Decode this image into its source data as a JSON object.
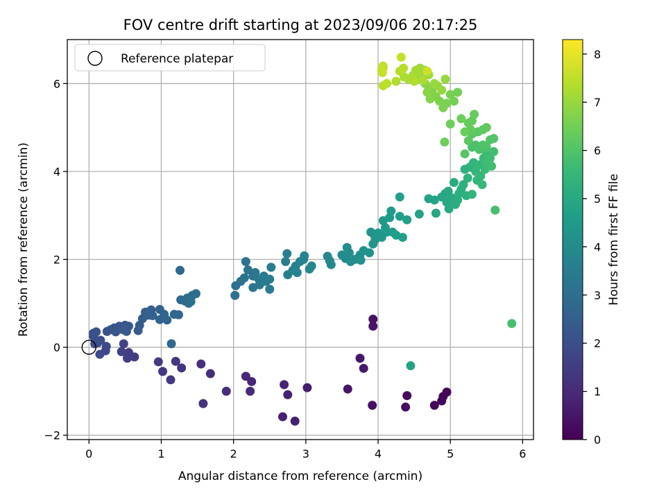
{
  "chart_data": {
    "type": "scatter",
    "title": "FOV centre drift starting at 2023/09/06 20:17:25",
    "xlabel": "Angular distance from reference (arcmin)",
    "ylabel": "Rotation from reference (arcmin)",
    "xlim": [
      -0.3,
      6.15
    ],
    "ylim": [
      -2.1,
      7.0
    ],
    "xticks": [
      0,
      1,
      2,
      3,
      4,
      5,
      6
    ],
    "yticks": [
      -2,
      0,
      2,
      4,
      6
    ],
    "grid": true,
    "legend": {
      "placement": "top-left",
      "entries": [
        "Reference platepar"
      ]
    },
    "reference_point": {
      "x": 0,
      "y": 0
    },
    "colorbar": {
      "label": "Hours from first FF file",
      "colormap": "viridis",
      "range": [
        0,
        8.3
      ],
      "ticks": [
        0,
        1,
        2,
        3,
        4,
        5,
        6,
        7,
        8
      ]
    },
    "points": [
      {
        "x": 4.95,
        "y": -1.02,
        "c": 0.05
      },
      {
        "x": 4.9,
        "y": -1.12,
        "c": 0.1
      },
      {
        "x": 4.88,
        "y": -1.22,
        "c": 0.15
      },
      {
        "x": 4.78,
        "y": -1.32,
        "c": 0.2
      },
      {
        "x": 4.4,
        "y": -1.1,
        "c": 0.25
      },
      {
        "x": 4.38,
        "y": -1.36,
        "c": 0.3
      },
      {
        "x": 3.92,
        "y": -1.32,
        "c": 0.35
      },
      {
        "x": 3.93,
        "y": 0.64,
        "c": 0.4
      },
      {
        "x": 3.93,
        "y": 0.48,
        "c": 0.45
      },
      {
        "x": 3.58,
        "y": -0.95,
        "c": 0.5
      },
      {
        "x": 3.75,
        "y": -0.25,
        "c": 0.55
      },
      {
        "x": 3.8,
        "y": -0.48,
        "c": 0.6
      },
      {
        "x": 3.02,
        "y": -0.92,
        "c": 0.65
      },
      {
        "x": 2.85,
        "y": -1.68,
        "c": 0.7
      },
      {
        "x": 2.68,
        "y": -1.58,
        "c": 0.75
      },
      {
        "x": 2.75,
        "y": -1.08,
        "c": 0.8
      },
      {
        "x": 2.7,
        "y": -0.85,
        "c": 0.85
      },
      {
        "x": 2.25,
        "y": -0.78,
        "c": 0.9
      },
      {
        "x": 2.17,
        "y": -0.66,
        "c": 0.95
      },
      {
        "x": 2.23,
        "y": -1.0,
        "c": 1.0
      },
      {
        "x": 1.9,
        "y": -1.0,
        "c": 1.05
      },
      {
        "x": 1.68,
        "y": -0.6,
        "c": 1.1
      },
      {
        "x": 1.55,
        "y": -0.38,
        "c": 1.15
      },
      {
        "x": 1.58,
        "y": -1.28,
        "c": 1.2
      },
      {
        "x": 1.28,
        "y": -0.47,
        "c": 1.25
      },
      {
        "x": 1.2,
        "y": -0.32,
        "c": 1.3
      },
      {
        "x": 1.13,
        "y": -0.74,
        "c": 1.35
      },
      {
        "x": 1.02,
        "y": -0.55,
        "c": 1.4
      },
      {
        "x": 0.96,
        "y": -0.33,
        "c": 1.45
      },
      {
        "x": 0.63,
        "y": -0.22,
        "c": 1.5
      },
      {
        "x": 0.55,
        "y": -0.12,
        "c": 1.55
      },
      {
        "x": 0.53,
        "y": -0.25,
        "c": 1.6
      },
      {
        "x": 0.45,
        "y": -0.1,
        "c": 1.65
      },
      {
        "x": 0.48,
        "y": 0.08,
        "c": 1.7
      },
      {
        "x": 0.23,
        "y": -0.08,
        "c": 1.75
      },
      {
        "x": 0.24,
        "y": 0.02,
        "c": 1.8
      },
      {
        "x": 0.15,
        "y": -0.16,
        "c": 1.85
      },
      {
        "x": 0.12,
        "y": 0.1,
        "c": 1.9
      },
      {
        "x": 0.16,
        "y": 0.16,
        "c": 1.95
      },
      {
        "x": 0.08,
        "y": 0.08,
        "c": 2.0
      },
      {
        "x": 0.06,
        "y": 0.25,
        "c": 2.03
      },
      {
        "x": 0.06,
        "y": 0.32,
        "c": 2.06
      },
      {
        "x": 0.1,
        "y": 0.35,
        "c": 2.09
      },
      {
        "x": 0.25,
        "y": 0.36,
        "c": 2.12
      },
      {
        "x": 0.3,
        "y": 0.4,
        "c": 2.15
      },
      {
        "x": 0.35,
        "y": 0.44,
        "c": 2.18
      },
      {
        "x": 0.42,
        "y": 0.48,
        "c": 2.21
      },
      {
        "x": 0.5,
        "y": 0.5,
        "c": 2.24
      },
      {
        "x": 0.37,
        "y": 0.35,
        "c": 2.27
      },
      {
        "x": 0.47,
        "y": 0.4,
        "c": 2.3
      },
      {
        "x": 0.52,
        "y": 0.36,
        "c": 2.33
      },
      {
        "x": 0.55,
        "y": 0.48,
        "c": 2.36
      },
      {
        "x": 0.68,
        "y": 0.38,
        "c": 2.39
      },
      {
        "x": 0.7,
        "y": 0.5,
        "c": 2.42
      },
      {
        "x": 0.74,
        "y": 0.65,
        "c": 2.45
      },
      {
        "x": 0.78,
        "y": 0.8,
        "c": 2.48
      },
      {
        "x": 0.82,
        "y": 0.73,
        "c": 2.51
      },
      {
        "x": 0.86,
        "y": 0.85,
        "c": 2.54
      },
      {
        "x": 0.88,
        "y": 0.72,
        "c": 2.57
      },
      {
        "x": 0.98,
        "y": 0.63,
        "c": 2.6
      },
      {
        "x": 0.98,
        "y": 0.86,
        "c": 2.63
      },
      {
        "x": 1.04,
        "y": 0.75,
        "c": 2.66
      },
      {
        "x": 1.08,
        "y": 0.62,
        "c": 2.69
      },
      {
        "x": 1.18,
        "y": 0.75,
        "c": 2.72
      },
      {
        "x": 1.24,
        "y": 0.74,
        "c": 2.75
      },
      {
        "x": 1.14,
        "y": 0.08,
        "c": 2.78
      },
      {
        "x": 1.26,
        "y": 1.75,
        "c": 2.81
      },
      {
        "x": 1.27,
        "y": 1.08,
        "c": 2.84
      },
      {
        "x": 1.33,
        "y": 1.05,
        "c": 2.87
      },
      {
        "x": 1.36,
        "y": 1.12,
        "c": 2.9
      },
      {
        "x": 1.38,
        "y": 1.0,
        "c": 2.93
      },
      {
        "x": 1.43,
        "y": 1.18,
        "c": 2.96
      },
      {
        "x": 1.48,
        "y": 1.22,
        "c": 2.99
      },
      {
        "x": 1.41,
        "y": 1.04,
        "c": 3.02
      },
      {
        "x": 2.02,
        "y": 1.18,
        "c": 3.05
      },
      {
        "x": 2.03,
        "y": 1.4,
        "c": 3.08
      },
      {
        "x": 2.1,
        "y": 1.5,
        "c": 3.11
      },
      {
        "x": 2.15,
        "y": 1.58,
        "c": 3.14
      },
      {
        "x": 2.17,
        "y": 1.95,
        "c": 3.17
      },
      {
        "x": 2.2,
        "y": 1.76,
        "c": 3.2
      },
      {
        "x": 2.27,
        "y": 1.36,
        "c": 3.23
      },
      {
        "x": 2.27,
        "y": 1.62,
        "c": 3.26
      },
      {
        "x": 2.3,
        "y": 1.7,
        "c": 3.29
      },
      {
        "x": 2.36,
        "y": 1.42,
        "c": 3.32
      },
      {
        "x": 2.35,
        "y": 1.55,
        "c": 3.35
      },
      {
        "x": 2.42,
        "y": 1.62,
        "c": 3.38
      },
      {
        "x": 2.45,
        "y": 1.5,
        "c": 3.41
      },
      {
        "x": 2.5,
        "y": 1.55,
        "c": 3.44
      },
      {
        "x": 2.5,
        "y": 1.32,
        "c": 3.47
      },
      {
        "x": 2.52,
        "y": 1.82,
        "c": 3.5
      },
      {
        "x": 2.72,
        "y": 1.95,
        "c": 3.53
      },
      {
        "x": 2.74,
        "y": 2.13,
        "c": 3.56
      },
      {
        "x": 2.75,
        "y": 1.65,
        "c": 3.59
      },
      {
        "x": 2.82,
        "y": 1.75,
        "c": 3.62
      },
      {
        "x": 2.86,
        "y": 1.85,
        "c": 3.65
      },
      {
        "x": 2.88,
        "y": 1.7,
        "c": 3.68
      },
      {
        "x": 2.92,
        "y": 1.95,
        "c": 3.71
      },
      {
        "x": 2.97,
        "y": 2.0,
        "c": 3.74
      },
      {
        "x": 2.98,
        "y": 2.08,
        "c": 3.77
      },
      {
        "x": 3.05,
        "y": 1.78,
        "c": 3.8
      },
      {
        "x": 3.08,
        "y": 1.85,
        "c": 3.83
      },
      {
        "x": 3.3,
        "y": 2.07,
        "c": 3.86
      },
      {
        "x": 3.33,
        "y": 1.97,
        "c": 3.89
      },
      {
        "x": 3.35,
        "y": 1.88,
        "c": 3.92
      },
      {
        "x": 3.5,
        "y": 2.1,
        "c": 3.95
      },
      {
        "x": 3.55,
        "y": 2.02,
        "c": 3.98
      },
      {
        "x": 3.57,
        "y": 2.27,
        "c": 4.01
      },
      {
        "x": 3.6,
        "y": 2.15,
        "c": 4.04
      },
      {
        "x": 3.62,
        "y": 1.95,
        "c": 4.07
      },
      {
        "x": 3.68,
        "y": 2.0,
        "c": 4.1
      },
      {
        "x": 3.75,
        "y": 2.1,
        "c": 4.13
      },
      {
        "x": 3.76,
        "y": 1.98,
        "c": 4.16
      },
      {
        "x": 3.8,
        "y": 2.2,
        "c": 4.19
      },
      {
        "x": 3.88,
        "y": 2.15,
        "c": 4.22
      },
      {
        "x": 3.9,
        "y": 2.62,
        "c": 4.25
      },
      {
        "x": 3.93,
        "y": 2.35,
        "c": 4.28
      },
      {
        "x": 3.95,
        "y": 2.55,
        "c": 4.31
      },
      {
        "x": 3.96,
        "y": 2.45,
        "c": 4.34
      },
      {
        "x": 4.0,
        "y": 2.6,
        "c": 4.37
      },
      {
        "x": 4.05,
        "y": 2.5,
        "c": 4.4
      },
      {
        "x": 4.07,
        "y": 2.88,
        "c": 4.43
      },
      {
        "x": 4.1,
        "y": 2.72,
        "c": 4.46
      },
      {
        "x": 4.12,
        "y": 2.62,
        "c": 4.49
      },
      {
        "x": 4.16,
        "y": 2.95,
        "c": 4.52
      },
      {
        "x": 4.18,
        "y": 3.1,
        "c": 4.55
      },
      {
        "x": 4.2,
        "y": 2.62,
        "c": 4.58
      },
      {
        "x": 4.25,
        "y": 2.55,
        "c": 4.61
      },
      {
        "x": 4.3,
        "y": 2.98,
        "c": 4.64
      },
      {
        "x": 4.34,
        "y": 2.5,
        "c": 4.67
      },
      {
        "x": 4.3,
        "y": 3.42,
        "c": 4.7
      },
      {
        "x": 4.4,
        "y": 2.9,
        "c": 4.73
      },
      {
        "x": 4.57,
        "y": 3.03,
        "c": 4.76
      },
      {
        "x": 4.45,
        "y": -0.42,
        "c": 4.79
      },
      {
        "x": 4.7,
        "y": 3.38,
        "c": 4.82
      },
      {
        "x": 4.78,
        "y": 3.35,
        "c": 4.85
      },
      {
        "x": 4.8,
        "y": 3.05,
        "c": 4.88
      },
      {
        "x": 4.88,
        "y": 3.42,
        "c": 4.91
      },
      {
        "x": 4.93,
        "y": 3.5,
        "c": 4.94
      },
      {
        "x": 4.95,
        "y": 3.3,
        "c": 4.97
      },
      {
        "x": 4.97,
        "y": 3.55,
        "c": 5.0
      },
      {
        "x": 4.98,
        "y": 3.15,
        "c": 5.03
      },
      {
        "x": 5.02,
        "y": 3.4,
        "c": 5.06
      },
      {
        "x": 5.05,
        "y": 3.75,
        "c": 5.09
      },
      {
        "x": 5.07,
        "y": 3.25,
        "c": 5.12
      },
      {
        "x": 5.1,
        "y": 3.35,
        "c": 5.15
      },
      {
        "x": 5.12,
        "y": 3.5,
        "c": 5.18
      },
      {
        "x": 5.15,
        "y": 3.6,
        "c": 5.21
      },
      {
        "x": 5.18,
        "y": 3.7,
        "c": 5.24
      },
      {
        "x": 5.2,
        "y": 4.05,
        "c": 5.27
      },
      {
        "x": 5.22,
        "y": 3.45,
        "c": 5.3
      },
      {
        "x": 5.24,
        "y": 3.85,
        "c": 5.33
      },
      {
        "x": 5.27,
        "y": 4.1,
        "c": 5.36
      },
      {
        "x": 5.3,
        "y": 3.48,
        "c": 5.39
      },
      {
        "x": 5.32,
        "y": 4.2,
        "c": 5.42
      },
      {
        "x": 5.35,
        "y": 4.0,
        "c": 5.45
      },
      {
        "x": 5.37,
        "y": 3.8,
        "c": 5.48
      },
      {
        "x": 5.4,
        "y": 4.15,
        "c": 5.51
      },
      {
        "x": 5.42,
        "y": 3.9,
        "c": 5.54
      },
      {
        "x": 5.44,
        "y": 3.7,
        "c": 5.57
      },
      {
        "x": 5.46,
        "y": 4.3,
        "c": 5.6
      },
      {
        "x": 5.48,
        "y": 4.05,
        "c": 5.63
      },
      {
        "x": 5.5,
        "y": 4.4,
        "c": 5.66
      },
      {
        "x": 5.52,
        "y": 4.2,
        "c": 5.69
      },
      {
        "x": 5.55,
        "y": 4.3,
        "c": 5.72
      },
      {
        "x": 5.57,
        "y": 4.12,
        "c": 5.75
      },
      {
        "x": 5.6,
        "y": 4.45,
        "c": 5.78
      },
      {
        "x": 5.62,
        "y": 3.12,
        "c": 5.81
      },
      {
        "x": 5.85,
        "y": 0.54,
        "c": 5.84
      },
      {
        "x": 5.3,
        "y": 4.55,
        "c": 5.87
      },
      {
        "x": 5.35,
        "y": 4.6,
        "c": 5.9
      },
      {
        "x": 5.4,
        "y": 4.5,
        "c": 5.93
      },
      {
        "x": 5.45,
        "y": 4.6,
        "c": 5.96
      },
      {
        "x": 5.5,
        "y": 4.55,
        "c": 5.99
      },
      {
        "x": 5.55,
        "y": 4.72,
        "c": 6.02
      },
      {
        "x": 5.6,
        "y": 4.75,
        "c": 6.05
      },
      {
        "x": 5.2,
        "y": 4.4,
        "c": 6.08
      },
      {
        "x": 5.25,
        "y": 4.7,
        "c": 6.11
      },
      {
        "x": 5.3,
        "y": 4.85,
        "c": 6.14
      },
      {
        "x": 5.38,
        "y": 4.9,
        "c": 6.17
      },
      {
        "x": 5.45,
        "y": 4.95,
        "c": 6.2
      },
      {
        "x": 5.5,
        "y": 5.0,
        "c": 6.23
      },
      {
        "x": 5.28,
        "y": 4.95,
        "c": 6.26
      },
      {
        "x": 5.3,
        "y": 5.15,
        "c": 6.29
      },
      {
        "x": 5.33,
        "y": 5.3,
        "c": 6.32
      },
      {
        "x": 5.25,
        "y": 5.1,
        "c": 6.35
      },
      {
        "x": 5.2,
        "y": 4.9,
        "c": 6.38
      },
      {
        "x": 5.15,
        "y": 5.2,
        "c": 6.41
      },
      {
        "x": 5.0,
        "y": 5.08,
        "c": 6.44
      },
      {
        "x": 4.92,
        "y": 4.67,
        "c": 6.47
      },
      {
        "x": 5.1,
        "y": 5.8,
        "c": 6.5
      },
      {
        "x": 5.05,
        "y": 5.6,
        "c": 6.53
      },
      {
        "x": 5.0,
        "y": 5.75,
        "c": 6.56
      },
      {
        "x": 4.95,
        "y": 5.55,
        "c": 6.59
      },
      {
        "x": 4.9,
        "y": 5.45,
        "c": 6.62
      },
      {
        "x": 4.85,
        "y": 5.6,
        "c": 6.65
      },
      {
        "x": 4.8,
        "y": 5.7,
        "c": 6.68
      },
      {
        "x": 4.75,
        "y": 5.8,
        "c": 6.71
      },
      {
        "x": 4.72,
        "y": 5.65,
        "c": 6.74
      },
      {
        "x": 4.7,
        "y": 5.9,
        "c": 6.77
      },
      {
        "x": 4.68,
        "y": 5.8,
        "c": 6.8
      },
      {
        "x": 4.65,
        "y": 6.0,
        "c": 6.83
      },
      {
        "x": 4.6,
        "y": 6.1,
        "c": 6.86
      },
      {
        "x": 4.55,
        "y": 6.2,
        "c": 6.89
      },
      {
        "x": 4.82,
        "y": 5.95,
        "c": 6.92
      },
      {
        "x": 4.88,
        "y": 5.85,
        "c": 6.95
      },
      {
        "x": 4.93,
        "y": 6.1,
        "c": 6.98
      },
      {
        "x": 4.78,
        "y": 6.0,
        "c": 7.01
      },
      {
        "x": 4.7,
        "y": 6.2,
        "c": 7.04
      },
      {
        "x": 4.65,
        "y": 6.3,
        "c": 7.07
      },
      {
        "x": 4.6,
        "y": 6.25,
        "c": 7.1
      },
      {
        "x": 4.58,
        "y": 6.35,
        "c": 7.13
      },
      {
        "x": 4.52,
        "y": 6.3,
        "c": 7.16
      },
      {
        "x": 4.48,
        "y": 6.18,
        "c": 7.19
      },
      {
        "x": 4.42,
        "y": 6.1,
        "c": 7.22
      },
      {
        "x": 4.36,
        "y": 6.15,
        "c": 7.25
      },
      {
        "x": 4.62,
        "y": 6.08,
        "c": 7.28
      },
      {
        "x": 4.5,
        "y": 6.05,
        "c": 7.31
      },
      {
        "x": 4.25,
        "y": 6.05,
        "c": 7.34
      },
      {
        "x": 4.35,
        "y": 6.35,
        "c": 7.37
      },
      {
        "x": 4.3,
        "y": 6.28,
        "c": 7.4
      },
      {
        "x": 4.12,
        "y": 6.0,
        "c": 7.43
      },
      {
        "x": 4.07,
        "y": 5.95,
        "c": 7.46
      },
      {
        "x": 4.05,
        "y": 6.3,
        "c": 7.49
      },
      {
        "x": 4.07,
        "y": 6.35,
        "c": 7.52
      },
      {
        "x": 4.07,
        "y": 6.4,
        "c": 7.55
      },
      {
        "x": 4.32,
        "y": 6.6,
        "c": 7.58
      },
      {
        "x": 4.06,
        "y": 6.25,
        "c": 7.61
      },
      {
        "x": 4.68,
        "y": 6.28,
        "c": 7.64
      }
    ]
  }
}
